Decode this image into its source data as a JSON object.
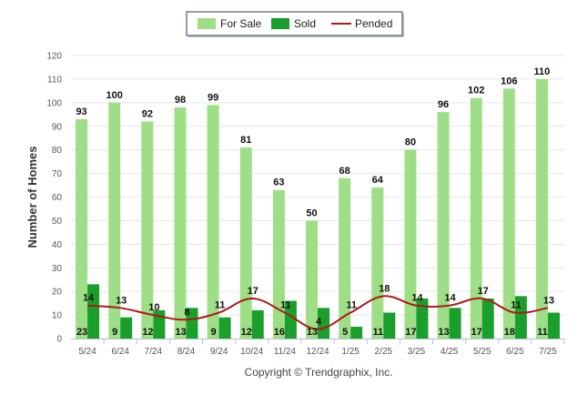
{
  "chart_data": {
    "type": "bar",
    "categories": [
      "5/24",
      "6/24",
      "7/24",
      "8/24",
      "9/24",
      "10/24",
      "11/24",
      "12/24",
      "1/25",
      "2/25",
      "3/25",
      "4/25",
      "5/25",
      "6/25",
      "7/25"
    ],
    "series": [
      {
        "name": "For Sale",
        "type": "bar",
        "color": "#9ede86",
        "values": [
          93,
          100,
          92,
          98,
          99,
          81,
          63,
          50,
          68,
          64,
          80,
          96,
          102,
          106,
          110
        ]
      },
      {
        "name": "Sold",
        "type": "bar",
        "color": "#1a9e2c",
        "values": [
          23,
          9,
          12,
          13,
          9,
          12,
          16,
          13,
          5,
          11,
          17,
          13,
          17,
          18,
          11
        ]
      },
      {
        "name": "Pended",
        "type": "line",
        "color": "#b01818",
        "values": [
          14,
          13,
          10,
          8,
          11,
          17,
          11,
          4,
          11,
          18,
          14,
          14,
          17,
          11,
          13
        ]
      }
    ],
    "xlabel": "",
    "ylabel": "Number of Homes",
    "ylim": [
      0,
      120
    ],
    "yticks": [
      0,
      10,
      20,
      30,
      40,
      50,
      60,
      70,
      80,
      90,
      100,
      110,
      120
    ],
    "grid": true,
    "legend_position": "top-center"
  },
  "footer": {
    "copyright": "Copyright © Trendgraphix, Inc."
  }
}
